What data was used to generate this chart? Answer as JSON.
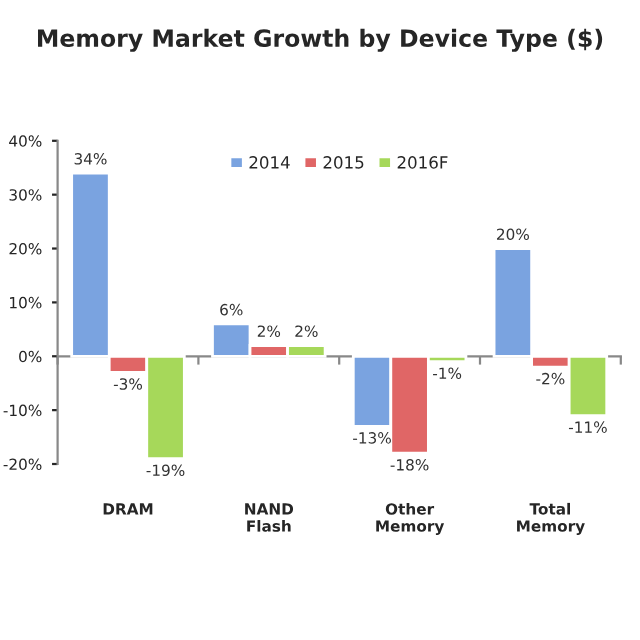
{
  "chart_data": {
    "type": "bar",
    "title": "Memory Market Growth by Device Type ($)",
    "categories": [
      "DRAM",
      "NAND\nFlash",
      "Other\nMemory",
      "Total\nMemory"
    ],
    "series": [
      {
        "name": "2014",
        "color": "#7aa3e0",
        "values": [
          34,
          6,
          -13,
          20
        ],
        "value_labels": [
          "34%",
          "6%",
          "-13%",
          "20%"
        ]
      },
      {
        "name": "2015",
        "color": "#e06666",
        "values": [
          -3,
          2,
          -18,
          -2
        ],
        "value_labels": [
          "-3%",
          "2%",
          "-18%",
          "-2%"
        ]
      },
      {
        "name": "2016F",
        "color": "#a6d85a",
        "values": [
          -19,
          2,
          -1,
          -11
        ],
        "value_labels": [
          "-19%",
          "2%",
          "-1%",
          "-11%"
        ]
      }
    ],
    "ylim": [
      -20,
      40
    ],
    "yticks": [
      {
        "value": -20,
        "label": "-20%"
      },
      {
        "value": -10,
        "label": "-10%"
      },
      {
        "value": 0,
        "label": "0%"
      },
      {
        "value": 10,
        "label": "10%"
      },
      {
        "value": 20,
        "label": "20%"
      },
      {
        "value": 30,
        "label": "30%"
      },
      {
        "value": 40,
        "label": "40%"
      }
    ],
    "legend": "top",
    "ref_lines": [
      {
        "axis": "y",
        "value": 0,
        "color": "#888888"
      }
    ]
  }
}
